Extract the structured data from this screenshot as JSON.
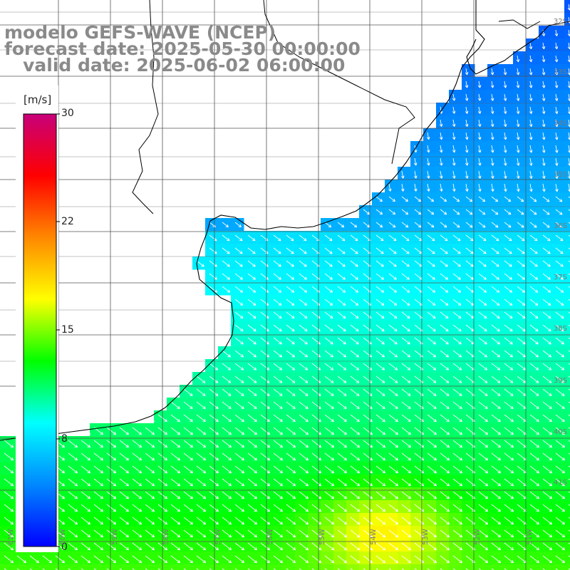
{
  "title": {
    "line1": "modelo GEFS-WAVE (NCEP)",
    "line2": "forecast date: 2025-05-30 00:00:00",
    "line3": "   valid date: 2025-06-02 06:00:00"
  },
  "colorbar": {
    "unit": "[m/s]",
    "ticks": [
      "30",
      "22",
      "15",
      "8",
      "0"
    ],
    "range": [
      0,
      30
    ],
    "colors": [
      "#0000ff",
      "#0088ff",
      "#00ffff",
      "#00ff00",
      "#ffff00",
      "#ff8800",
      "#ff0000",
      "#c8007a"
    ]
  },
  "grid": {
    "lat_labels": [
      "32S",
      "33S",
      "34S",
      "35S",
      "36S",
      "37S",
      "38S",
      "39S",
      "40S",
      "41S"
    ],
    "lon_labels": [
      "61W",
      "60W",
      "59W",
      "58W",
      "57W",
      "56W",
      "55W",
      "54W",
      "53W",
      "52W",
      "51W"
    ]
  },
  "field": {
    "variable": "wind speed",
    "description": "wind vectors over ocean, flow toward southeast"
  },
  "colors": {
    "land": "#ffffff",
    "coast": "#000000",
    "grid": "#555555",
    "title": "#8a8a8a",
    "arrows": "#ffffff"
  }
}
